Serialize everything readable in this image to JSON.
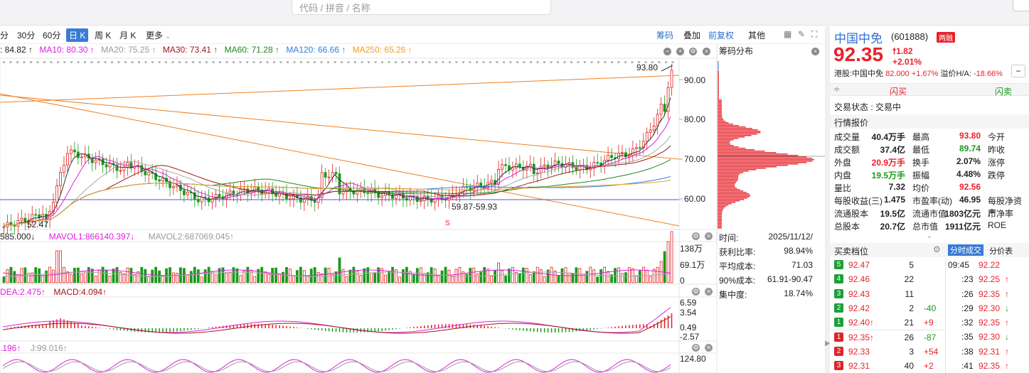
{
  "search": {
    "placeholder": "代码 / 拼音 / 名称"
  },
  "periods": {
    "items": [
      "分",
      "30分",
      "60分",
      "日 K",
      "周 K",
      "月 K",
      "更多"
    ],
    "active": "日 K"
  },
  "toolbar_right": {
    "chips": "筹码",
    "overlay": "叠加",
    "adjust": "前复权",
    "other": "其他"
  },
  "ma_row": [
    {
      "label": ": 84.82 ↑",
      "color": "#222222"
    },
    {
      "label": "MA10: 80.30 ↑",
      "color": "#e020e0"
    },
    {
      "label": "MA20: 75.25 ↑",
      "color": "#9a9a9a"
    },
    {
      "label": "MA30: 73.41 ↑",
      "color": "#a01818"
    },
    {
      "label": "MA60: 71.28 ↑",
      "color": "#1a8a1a"
    },
    {
      "label": "MA120: 66.66 ↑",
      "color": "#2e7fe0"
    },
    {
      "label": "MA250: 65.26 ↑",
      "color": "#f0a020"
    }
  ],
  "price_axis": [
    "90.00",
    "80.00",
    "70.00",
    "60.00"
  ],
  "price_annotations": {
    "high": "93.80",
    "low": "52.47",
    "range": "59.87-59.93",
    "signal": "S"
  },
  "vol_row": {
    "a": "585.000↓",
    "b": "MAVOL1:866140.397↓",
    "c": "MAVOL2:687069.045↑"
  },
  "vol_axis": [
    "138万",
    "69.1万",
    "0"
  ],
  "macd_row": {
    "dea": "DEA:2.475↑",
    "macd": "MACD:4.094↑"
  },
  "macd_axis": [
    "6.59",
    "3.54",
    "0.49",
    "-2.57"
  ],
  "kdj_row": {
    "a": ".196↑",
    "j": "J:99.016↑"
  },
  "kdj_axis": [
    "124.80"
  ],
  "chips": {
    "title": "筹码分布",
    "rows": [
      {
        "k": "时间:",
        "v": "2025/11/12/"
      },
      {
        "k": "获利比率:",
        "v": "98.94%"
      },
      {
        "k": "平均成本:",
        "v": "71.03"
      },
      {
        "k": "90%成本:",
        "v": "61.91-90.47"
      },
      {
        "k": "集中度:",
        "v": "18.74%"
      }
    ]
  },
  "stock": {
    "name": "中国中免",
    "code": "(601888)",
    "tag": "两融",
    "price": "92.35",
    "change": "1.82",
    "change_pct": "+2.01%",
    "hk_label": "港股:中国中免",
    "hk_value": "82.000 +1.67%",
    "premium_label": "溢价H/A:",
    "premium_value": "-18.66%",
    "flash_buy": "闪买",
    "flash_sell": "闪卖",
    "status": "交易状态 : 交易中",
    "quote_title": "行情报价"
  },
  "quote": [
    [
      {
        "k": "成交量",
        "v": "40.4万手",
        "c": "#222"
      },
      {
        "k": "最高",
        "v": "93.80",
        "c": "#e8222a"
      },
      {
        "k": "今开",
        "v": "",
        "c": "#222"
      }
    ],
    [
      {
        "k": "成交额",
        "v": "37.4亿",
        "c": "#222"
      },
      {
        "k": "最低",
        "v": "89.74",
        "c": "#1a9a1a"
      },
      {
        "k": "昨收",
        "v": "",
        "c": "#222"
      }
    ],
    [
      {
        "k": "外盘",
        "v": "20.9万手",
        "c": "#e8222a"
      },
      {
        "k": "换手",
        "v": "2.07%",
        "c": "#222"
      },
      {
        "k": "涨停",
        "v": "",
        "c": "#222"
      }
    ],
    [
      {
        "k": "内盘",
        "v": "19.5万手",
        "c": "#1a9a1a"
      },
      {
        "k": "振幅",
        "v": "4.48%",
        "c": "#222"
      },
      {
        "k": "跌停",
        "v": "",
        "c": "#222"
      }
    ],
    [
      {
        "k": "量比",
        "v": "7.32",
        "c": "#222"
      },
      {
        "k": "均价",
        "v": "92.56",
        "c": "#e8222a"
      },
      {
        "k": "",
        "v": "",
        "c": "#222"
      }
    ],
    [
      {
        "k": "每股收益(三)",
        "v": "1.475",
        "c": "#222"
      },
      {
        "k": "市盈率(动)",
        "v": "46.95",
        "c": "#222"
      },
      {
        "k": "每股净资产",
        "v": "",
        "c": "#222"
      }
    ],
    [
      {
        "k": "流通股本",
        "v": "19.5亿",
        "c": "#222"
      },
      {
        "k": "流通市值",
        "v": "1803亿元",
        "c": "#222"
      },
      {
        "k": "市净率",
        "v": "",
        "c": "#222"
      }
    ],
    [
      {
        "k": "总股本",
        "v": "20.7亿",
        "c": "#222"
      },
      {
        "k": "总市值",
        "v": "1911亿元",
        "c": "#222"
      },
      {
        "k": "ROE",
        "v": "",
        "c": "#222"
      }
    ]
  ],
  "orderbook": {
    "title": "买卖档位",
    "tab_ticks": "分时成交",
    "tab_table": "分价表",
    "rows": [
      {
        "lvl": "5",
        "side": "sell",
        "price": "92.47",
        "vol": "5",
        "chg": ""
      },
      {
        "lvl": "4",
        "side": "sell",
        "price": "92.46",
        "vol": "22",
        "chg": ""
      },
      {
        "lvl": "3",
        "side": "sell",
        "price": "92.43",
        "vol": "11",
        "chg": ""
      },
      {
        "lvl": "2",
        "side": "sell",
        "price": "92.42",
        "vol": "2",
        "chg": "-40"
      },
      {
        "lvl": "1",
        "side": "sell",
        "price": "92.40↑",
        "vol": "21",
        "chg": "+9"
      },
      {
        "lvl": "1",
        "side": "buy",
        "price": "92.35↑",
        "vol": "26",
        "chg": "-87"
      },
      {
        "lvl": "2",
        "side": "buy",
        "price": "92.33",
        "vol": "3",
        "chg": "+54"
      },
      {
        "lvl": "3",
        "side": "buy",
        "price": "92.31",
        "vol": "40",
        "chg": "+2"
      }
    ]
  },
  "ticks": [
    {
      "t": "09:45",
      "p": "92.22",
      "d": ""
    },
    {
      "t": ":23",
      "p": "92.25",
      "d": "up"
    },
    {
      "t": ":26",
      "p": "92.35",
      "d": "up"
    },
    {
      "t": ":29",
      "p": "92.30",
      "d": "down"
    },
    {
      "t": ":32",
      "p": "92.35",
      "d": "up"
    },
    {
      "t": ":35",
      "p": "92.30",
      "d": "down"
    },
    {
      "t": ":38",
      "p": "92.31",
      "d": "up"
    },
    {
      "t": ":41",
      "p": "92.35",
      "d": "up"
    }
  ]
}
